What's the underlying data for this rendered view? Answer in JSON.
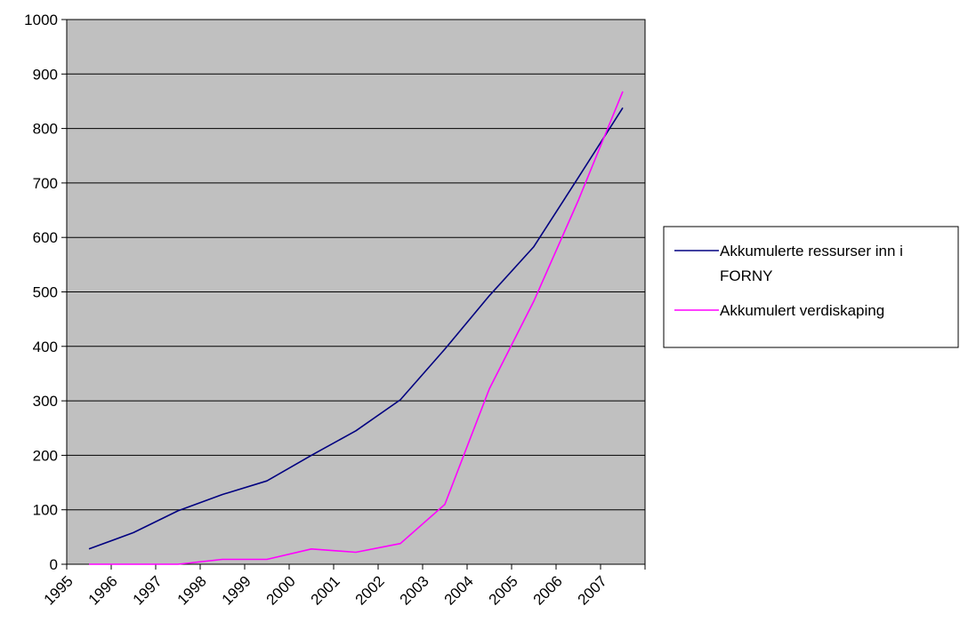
{
  "chart_data": {
    "type": "line",
    "title": "",
    "xlabel": "",
    "ylabel": "",
    "categories": [
      "1995",
      "1996",
      "1997",
      "1998",
      "1999",
      "2000",
      "2001",
      "2002",
      "2003",
      "2004",
      "2005",
      "2006",
      "2007"
    ],
    "ylim": [
      0,
      1000
    ],
    "yticks": [
      "0",
      "100",
      "200",
      "300",
      "400",
      "500",
      "600",
      "700",
      "800",
      "900",
      "1000"
    ],
    "grid": true,
    "plot_background": "#c0c0c0",
    "legend_position": "right",
    "series": [
      {
        "name_lines": [
          "Akkumulerte ressurser inn i",
          "FORNY"
        ],
        "name": "Akkumulerte ressurser inn i FORNY",
        "color": "#000080",
        "values": [
          28,
          58,
          98,
          128,
          153,
          200,
          245,
          302,
          395,
          493,
          583,
          710,
          838
        ]
      },
      {
        "name_lines": [
          "Akkumulert verdiskaping"
        ],
        "name": "Akkumulert verdiskaping",
        "color": "#ff00ff",
        "values": [
          0,
          0,
          0,
          9,
          9,
          28,
          22,
          38,
          110,
          322,
          483,
          668,
          868
        ]
      }
    ]
  }
}
